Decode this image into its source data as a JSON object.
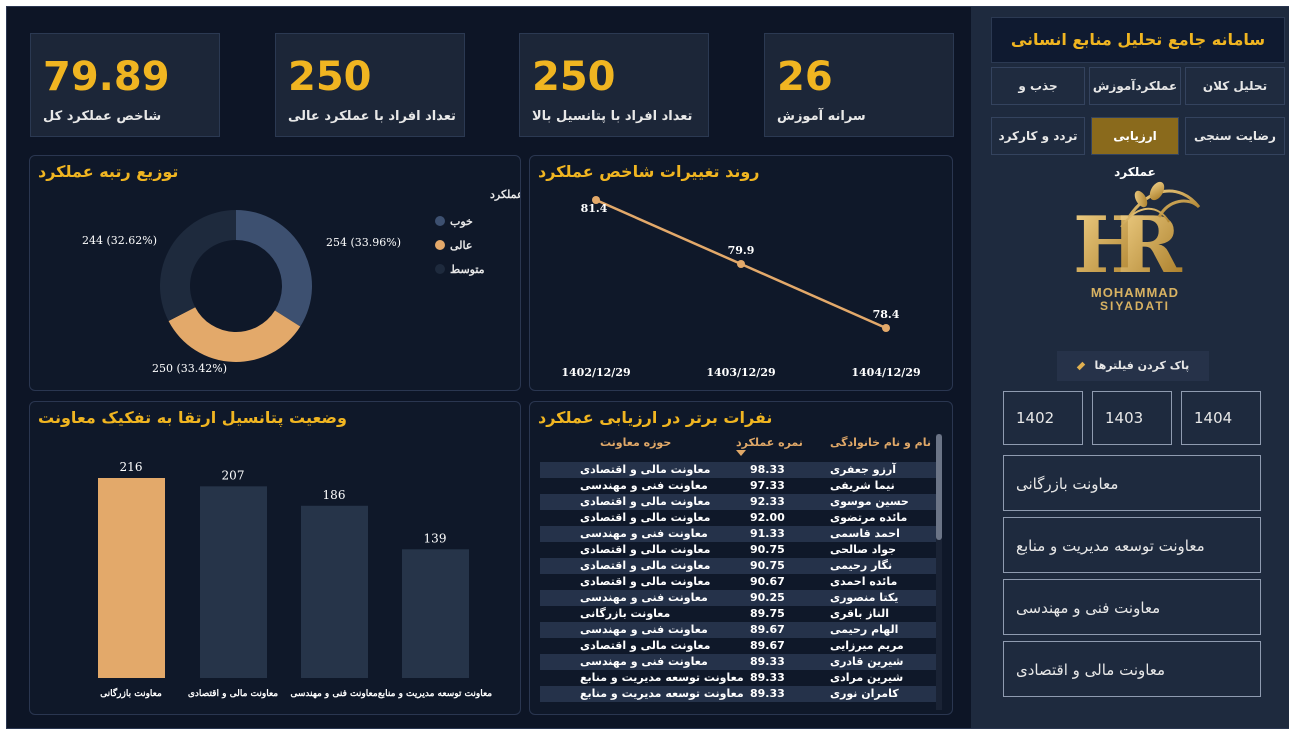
{
  "kpis": [
    {
      "value": "79.89",
      "label": "شاخص عملکرد کل"
    },
    {
      "value": "250",
      "label": "تعداد افراد با عملکرد عالی"
    },
    {
      "value": "250",
      "label": "تعداد افراد با پتانسیل بالا"
    },
    {
      "value": "26",
      "label": "سرانه آموزش"
    }
  ],
  "donut": {
    "title": "توزیع رتبه عملکرد",
    "legend_title": "رتبه عملکرد",
    "slices": [
      {
        "name": "خوب",
        "value": 254,
        "label": "254 (33.96%)",
        "color": "#3d5070"
      },
      {
        "name": "عالی",
        "value": 250,
        "label": "250 (33.42%)",
        "color": "#e3a96a"
      },
      {
        "name": "متوسط",
        "value": 244,
        "label": "244 (32.62%)",
        "color": "#1e2a3d"
      }
    ]
  },
  "trend": {
    "title": "روند تغییرات شاخص عملکرد",
    "points": [
      {
        "x": "1402/12/29",
        "y": 81.4,
        "label": "81.4"
      },
      {
        "x": "1403/12/29",
        "y": 79.9,
        "label": "79.9"
      },
      {
        "x": "1404/12/29",
        "y": 78.4,
        "label": "78.4"
      }
    ],
    "color": "#e3a96a"
  },
  "bars": {
    "title": "وضعیت پتانسیل ارتقا به تفکیک معاونت",
    "items": [
      {
        "category": "معاونت بازرگانی",
        "value": 216,
        "color": "#e3a96a"
      },
      {
        "category": "معاونت مالی و اقتصادی",
        "value": 207,
        "color": "#263449"
      },
      {
        "category": "معاونت فنی و مهندسی",
        "value": 186,
        "color": "#263449"
      },
      {
        "category": "معاونت توسعه مدیریت و منابع",
        "value": 139,
        "color": "#263449"
      }
    ]
  },
  "table": {
    "title": "نفرات برتر در ارزیابی عملکرد",
    "headers": {
      "name": "نام و نام خانوادگی",
      "score": "نمره عملکرد",
      "dept": "حوزه معاونت"
    },
    "rows": [
      {
        "name": "آرزو جعفری",
        "score": "98.33",
        "dept": "معاونت مالی و اقتصادی"
      },
      {
        "name": "نیما شریفی",
        "score": "97.33",
        "dept": "معاونت فنی و مهندسی"
      },
      {
        "name": "حسین موسوی",
        "score": "92.33",
        "dept": "معاونت مالی و اقتصادی"
      },
      {
        "name": "مائده مرتضوی",
        "score": "92.00",
        "dept": "معاونت مالی و اقتصادی"
      },
      {
        "name": "احمد قاسمی",
        "score": "91.33",
        "dept": "معاونت فنی و مهندسی"
      },
      {
        "name": "جواد صالحی",
        "score": "90.75",
        "dept": "معاونت مالی و اقتصادی"
      },
      {
        "name": "نگار رحیمی",
        "score": "90.75",
        "dept": "معاونت مالی و اقتصادی"
      },
      {
        "name": "مائده احمدی",
        "score": "90.67",
        "dept": "معاونت مالی و اقتصادی"
      },
      {
        "name": "یکتا منصوری",
        "score": "90.25",
        "dept": "معاونت فنی و مهندسی"
      },
      {
        "name": "الناز باقری",
        "score": "89.75",
        "dept": "معاونت بازرگانی"
      },
      {
        "name": "الهام رحیمی",
        "score": "89.67",
        "dept": "معاونت فنی و مهندسی"
      },
      {
        "name": "مریم میرزایی",
        "score": "89.67",
        "dept": "معاونت مالی و اقتصادی"
      },
      {
        "name": "شیرین قادری",
        "score": "89.33",
        "dept": "معاونت فنی و مهندسی"
      },
      {
        "name": "شیرین مرادی",
        "score": "89.33",
        "dept": "معاونت توسعه مدیریت و منابع"
      },
      {
        "name": "کامران نوری",
        "score": "89.33",
        "dept": "معاونت توسعه مدیریت و منابع"
      }
    ]
  },
  "sidebar": {
    "title": "سامانه جامع تحلیل منابع انسانی",
    "nav": [
      {
        "label": "تحلیل کلان",
        "active": false
      },
      {
        "label": "عملکردآموزش",
        "active": false
      },
      {
        "label": "جذب و استخدام",
        "active": false
      },
      {
        "label": "رضایت سنجی",
        "active": false
      },
      {
        "label": "ارزیابی عملکرد",
        "active": true
      },
      {
        "label": "تردد و کارکرد",
        "active": false
      }
    ],
    "logo_text_1": "MOHAMMAD",
    "logo_text_2": "SIYADATI",
    "clear_filters": "پاک کردن فیلترها",
    "years": [
      "1402",
      "1403",
      "1404"
    ],
    "filters": [
      "معاونت بازرگانی",
      "معاونت توسعه مدیریت و منابع",
      "معاونت فنی و مهندسی",
      "معاونت مالی و اقتصادی"
    ]
  },
  "colors": {
    "accent": "#f0b521",
    "background": "#0d1526",
    "panel": "#1c2638"
  }
}
